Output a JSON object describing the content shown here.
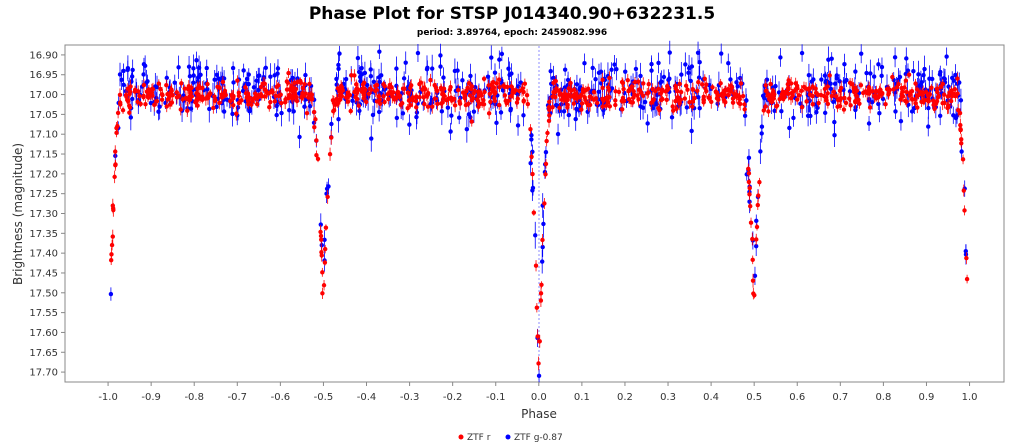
{
  "chart_data": {
    "type": "scatter",
    "title": "Phase Plot for STSP J014340.90+632231.5",
    "subtitle": "period: 3.89764, epoch: 2459082.996",
    "xlabel": "Phase",
    "ylabel": "Brightness (magnitude)",
    "xlim": [
      -1.1,
      1.08
    ],
    "ylim": [
      17.725,
      16.875
    ],
    "y_inverted": true,
    "x_ticks": [
      "-1.0",
      "-0.9",
      "-0.8",
      "-0.7",
      "-0.6",
      "-0.5",
      "-0.4",
      "-0.3",
      "-0.2",
      "-0.1",
      "0.0",
      "0.1",
      "0.2",
      "0.3",
      "0.4",
      "0.5",
      "0.6",
      "0.7",
      "0.8",
      "0.9",
      "1.0"
    ],
    "y_ticks": [
      "16.90",
      "16.95",
      "17.00",
      "17.05",
      "17.10",
      "17.15",
      "17.20",
      "17.25",
      "17.30",
      "17.35",
      "17.40",
      "17.45",
      "17.50",
      "17.55",
      "17.60",
      "17.65",
      "17.70"
    ],
    "zero_line": 0.0,
    "grid": false,
    "legend_position": "bottom-center",
    "series": [
      {
        "name": "ZTF r",
        "color": "#ff0000",
        "profile": {
          "baseline": 17.0,
          "primary_minimum_phase": 0.0,
          "primary_minimum_magnitude": 17.7,
          "secondary_minimum_phase": 0.5,
          "secondary_minimum_magnitude": 17.52,
          "scatter": 0.025
        }
      },
      {
        "name": "ZTF g-0.87",
        "color": "#0000ff",
        "profile": {
          "baseline": 16.99,
          "primary_minimum_phase": 0.0,
          "primary_minimum_magnitude": 17.72,
          "secondary_minimum_phase": 0.5,
          "secondary_minimum_magnitude": 17.5,
          "scatter": 0.04
        }
      }
    ]
  }
}
